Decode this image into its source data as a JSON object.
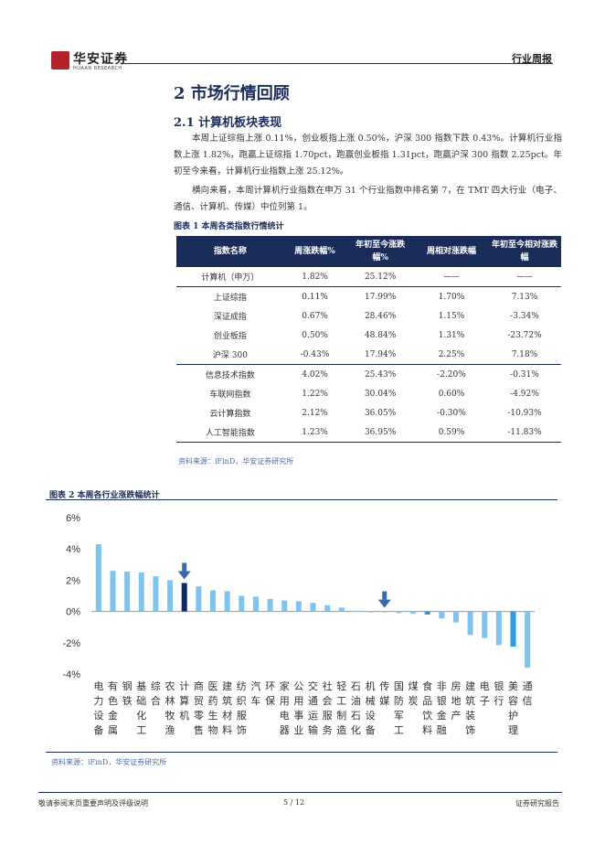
{
  "header": {
    "logo_cn": "华安证券",
    "logo_en": "HUAAN RESEARCH",
    "report_type": "行业周报"
  },
  "section": {
    "title": "2 市场行情回顾",
    "subtitle": "2.1 计算机板块表现",
    "para1": "本周上证综指上涨 0.11%，创业板指上涨 0.50%，沪深 300 指数下跌 0.43%。计算机行业指数上涨 1.82%，跑赢上证综指 1.70pct，跑赢创业板指 1.31pct，跑赢沪深 300 指数 2.25pct。年初至今来看，计算机行业指数上涨 25.12%。",
    "para2": "横向来看，本周计算机行业指数在申万 31 个行业指数中排名第 7，在 TMT 四大行业（电子、通信、计算机、传媒）中位列第 1。"
  },
  "table": {
    "caption": "图表 1 本周各类指数行情统计",
    "headers": [
      "指数名称",
      "周涨跌幅%",
      "年初至今涨跌幅%",
      "周相对涨跌幅",
      "年初至今相对涨跌幅"
    ],
    "rows": [
      [
        "计算机（申万）",
        "1.82%",
        "25.12%",
        "——",
        "——"
      ],
      [
        "上证综指",
        "0.11%",
        "17.99%",
        "1.70%",
        "7.13%"
      ],
      [
        "深证成指",
        "0.67%",
        "28.46%",
        "1.15%",
        "-3.34%"
      ],
      [
        "创业板指",
        "0.50%",
        "48.84%",
        "1.31%",
        "-23.72%"
      ],
      [
        "沪深 300",
        "-0.43%",
        "17.94%",
        "2.25%",
        "7.18%"
      ],
      [
        "信息技术指数",
        "4.02%",
        "25.43%",
        "-2.20%",
        "-0.31%"
      ],
      [
        "车联网指数",
        "1.22%",
        "30.04%",
        "0.60%",
        "-4.92%"
      ],
      [
        "云计算指数",
        "2.12%",
        "36.05%",
        "-0.30%",
        "-10.93%"
      ],
      [
        "人工智能指数",
        "1.23%",
        "36.95%",
        "0.59%",
        "-11.83%"
      ]
    ],
    "source": "资料来源：iFinD，华安证券研究所"
  },
  "chart_data": {
    "type": "bar",
    "title": "图表 2 本周各行业涨跌幅统计",
    "categories": [
      "电力设备",
      "有色金属",
      "钢铁",
      "基础化工",
      "综合",
      "农林牧渔",
      "计算机",
      "商贸零售",
      "医药生物",
      "建筑材料",
      "纺织服饰",
      "汽车",
      "环保",
      "家用电器",
      "公用事业",
      "交通运输",
      "社会服务",
      "轻工制造",
      "石油石化",
      "机械设备",
      "传媒",
      "国防军工",
      "煤炭",
      "食品饮料",
      "非银金融",
      "房地产",
      "建筑装饰",
      "电子",
      "银行",
      "美容护理",
      "通信"
    ],
    "values": [
      4.3,
      2.6,
      2.55,
      2.5,
      2.25,
      2.0,
      1.82,
      1.6,
      1.35,
      1.3,
      1.0,
      0.95,
      0.8,
      0.7,
      0.65,
      0.55,
      0.4,
      0.25,
      0.05,
      -0.02,
      -0.05,
      -0.1,
      -0.15,
      -0.2,
      -0.45,
      -0.7,
      -1.5,
      -1.7,
      -2.15,
      -2.25,
      -3.6
    ],
    "highlight_dark": [
      "计算机"
    ],
    "highlight_medium": [
      "食品饮料",
      "美容护理"
    ],
    "arrow_markers": [
      "计算机",
      "传媒"
    ],
    "ylim": [
      -4,
      6
    ],
    "yticks": [
      "6%",
      "4%",
      "2%",
      "0%",
      "-2%",
      "-4%"
    ],
    "ytick_values": [
      6,
      4,
      2,
      0,
      -2,
      -4
    ],
    "colors": {
      "bar": "#7ec4ee",
      "dark": "#0d2a66",
      "medium": "#2a9be0",
      "arrow": "#3a6aa8"
    },
    "source": "资料来源：iFinD，华安证券研究所"
  },
  "footer": {
    "disclaimer": "敬请参阅末页重要声明及评级说明",
    "page": "5 / 12",
    "label": "证券研究报告"
  }
}
